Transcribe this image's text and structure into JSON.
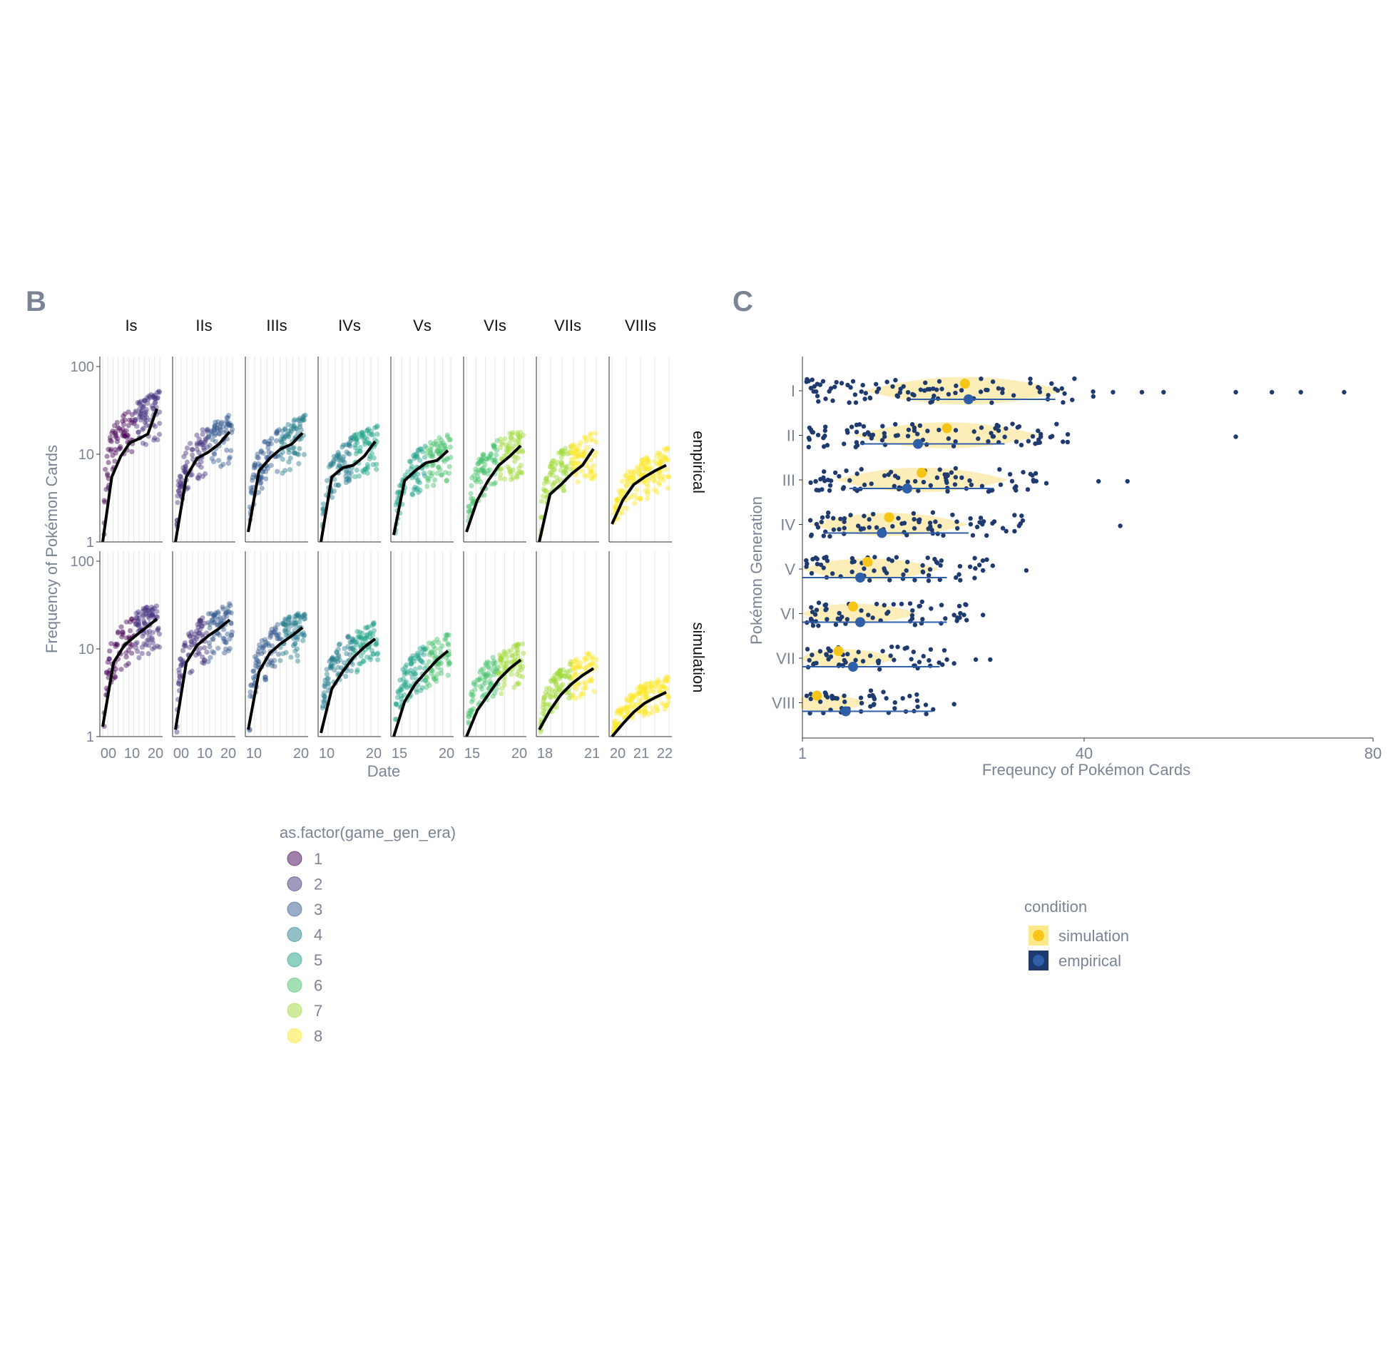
{
  "panel_b": {
    "label": "B",
    "y_axis_label": "Frequency of Pokémon Cards",
    "x_axis_label": "Date",
    "facet_columns": [
      "Is",
      "IIs",
      "IIIs",
      "IVs",
      "Vs",
      "VIs",
      "VIIs",
      "VIIIs"
    ],
    "facet_rows": [
      "empirical",
      "simulation"
    ],
    "y_ticks": [
      "1",
      "10",
      "100"
    ],
    "x_ticks": [
      [
        "00",
        "10",
        "20"
      ],
      [
        "00",
        "10",
        "20"
      ],
      [
        "10",
        "20"
      ],
      [
        "10",
        "20"
      ],
      [
        "15",
        "20"
      ],
      [
        "15",
        "20"
      ],
      [
        "18",
        "21"
      ],
      [
        "20",
        "21",
        "22"
      ]
    ],
    "legend_title": "as.factor(game_gen_era)",
    "legend_items": [
      "1",
      "2",
      "3",
      "4",
      "5",
      "6",
      "7",
      "8"
    ],
    "legend_colors": [
      "#440154",
      "#46337e",
      "#365c8d",
      "#277f8e",
      "#1fa187",
      "#4ac16d",
      "#a0da39",
      "#fde725"
    ]
  },
  "panel_c": {
    "label": "C",
    "y_axis_label": "Pokémon Generation",
    "x_axis_label": "Freqeuncy of Pokémon Cards",
    "x_ticks": [
      "1",
      "40",
      "80"
    ],
    "categories": [
      "I",
      "II",
      "III",
      "IV",
      "V",
      "VI",
      "VII",
      "VIII"
    ],
    "legend_title": "condition",
    "legend_items": [
      "simulation",
      "empirical"
    ],
    "legend_colors": [
      "#f5c518",
      "#1e3a6e"
    ]
  },
  "chart_data": [
    {
      "type": "line",
      "xlabel": "Date",
      "ylabel": "Frequency of Pokémon Cards",
      "y_scale": "log10",
      "ylim": [
        1,
        130
      ],
      "facets": [
        "Is",
        "IIs",
        "IIIs",
        "IVs",
        "Vs",
        "VIs",
        "VIIs",
        "VIIIs"
      ],
      "series": [
        {
          "name": "empirical",
          "values": [
            [
              1.0,
              5.5,
              9.5,
              13.5,
              15.0,
              17.0,
              33.0
            ],
            [
              1.0,
              5.5,
              9.0,
              10.5,
              13.0,
              18.0
            ],
            [
              1.3,
              6.5,
              9.0,
              11.5,
              13.0,
              17.5
            ],
            [
              1.0,
              5.5,
              7.0,
              7.5,
              9.5,
              14.0
            ],
            [
              1.2,
              5.0,
              6.5,
              8.0,
              8.5,
              11.0
            ],
            [
              1.3,
              3.0,
              5.0,
              7.5,
              9.5,
              12.5
            ],
            [
              1.0,
              3.5,
              4.5,
              6.0,
              7.5,
              11.5
            ],
            [
              1.6,
              3.0,
              4.5,
              5.5,
              6.5,
              7.5
            ]
          ]
        },
        {
          "name": "simulation",
          "values": [
            [
              1.3,
              7.0,
              11.0,
              14.0,
              17.5,
              22.0
            ],
            [
              1.2,
              7.0,
              11.0,
              14.0,
              17.0,
              21.5
            ],
            [
              1.2,
              5.5,
              9.0,
              11.5,
              14.0,
              17.5
            ],
            [
              1.1,
              3.5,
              5.5,
              8.0,
              10.5,
              13.0
            ],
            [
              1.0,
              2.5,
              4.0,
              5.5,
              7.5,
              9.5
            ],
            [
              1.0,
              2.0,
              3.0,
              4.5,
              6.0,
              7.5
            ],
            [
              1.2,
              2.0,
              3.0,
              4.0,
              5.0,
              6.0
            ],
            [
              1.0,
              1.4,
              1.9,
              2.4,
              2.8,
              3.2
            ]
          ]
        }
      ]
    },
    {
      "type": "scatter",
      "xlabel": "Freqeuncy of Pokémon Cards",
      "ylabel": "Pokémon Generation",
      "xlim": [
        1,
        80
      ],
      "categories": [
        "I",
        "II",
        "III",
        "IV",
        "V",
        "VI",
        "VII",
        "VIII"
      ],
      "series": [
        {
          "name": "simulation",
          "values": [
            23.5,
            21.0,
            17.5,
            13.0,
            10.0,
            8.0,
            6.0,
            3.0
          ]
        },
        {
          "name": "empirical",
          "values": [
            24.0,
            17.0,
            15.5,
            12.0,
            9.0,
            9.0,
            8.0,
            7.0
          ]
        }
      ]
    }
  ]
}
